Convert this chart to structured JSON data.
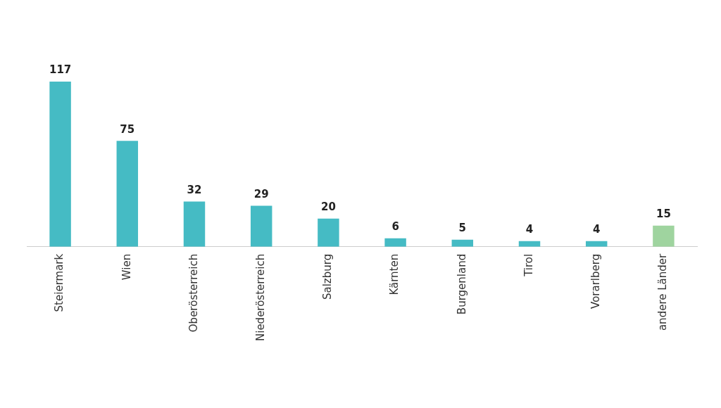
{
  "chart_data": {
    "type": "bar",
    "categories": [
      "Steiermark",
      "Wien",
      "Oberösterreich",
      "Niederösterreich",
      "Salzburg",
      "Kärnten",
      "Burgenland",
      "Tirol",
      "Vorarlberg",
      "andere Länder"
    ],
    "values": [
      117,
      75,
      32,
      29,
      20,
      6,
      5,
      4,
      4,
      15
    ],
    "colors": [
      "#45bbc4",
      "#45bbc4",
      "#45bbc4",
      "#45bbc4",
      "#45bbc4",
      "#45bbc4",
      "#45bbc4",
      "#45bbc4",
      "#45bbc4",
      "#9fd49f"
    ],
    "data_labels": true,
    "grid": false,
    "legend": false
  }
}
